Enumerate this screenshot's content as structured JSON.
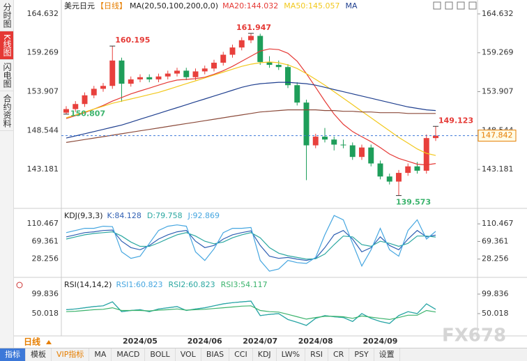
{
  "tabs_left": [
    "分时图",
    "K线图",
    "闪电图",
    "合约资料"
  ],
  "period_label": "日线",
  "watermark": "FX678",
  "toolbar": [
    "指标",
    "模板",
    "VIP指标",
    "MA",
    "MACD",
    "BOLL",
    "VOL",
    "BIAS",
    "CCI",
    "KDJ",
    "LW%",
    "RSI",
    "CR",
    "PSY",
    "设置"
  ],
  "chart_data": [
    {
      "type": "candlestick",
      "title": "美元日元",
      "period": "【日线】",
      "params": "MA(20,50,100,200,0,0)",
      "categories": [
        null,
        null,
        null,
        null,
        null,
        null,
        null,
        null,
        "2024/05",
        null,
        null,
        null,
        null,
        null,
        null,
        "2024/06",
        null,
        null,
        null,
        null,
        null,
        "2024/07",
        null,
        null,
        null,
        null,
        null,
        "2024/08",
        null,
        null,
        null,
        null,
        null,
        null,
        "2024/09",
        null,
        null,
        null,
        null,
        null,
        null
      ],
      "ohlc": [
        [
          151.0,
          151.9,
          150.807,
          151.5
        ],
        [
          151.5,
          152.6,
          151.1,
          152.2
        ],
        [
          152.2,
          153.8,
          151.8,
          153.4
        ],
        [
          153.4,
          154.7,
          153.0,
          154.3
        ],
        [
          154.3,
          155.1,
          153.9,
          154.7
        ],
        [
          154.7,
          160.195,
          154.3,
          158.2
        ],
        [
          158.2,
          158.6,
          152.5,
          155.0
        ],
        [
          155.0,
          156.0,
          154.6,
          155.6
        ],
        [
          155.6,
          156.3,
          155.2,
          155.9
        ],
        [
          155.9,
          156.3,
          155.2,
          155.6
        ],
        [
          155.6,
          156.4,
          155.2,
          156.0
        ],
        [
          156.0,
          156.8,
          155.6,
          156.4
        ],
        [
          156.4,
          157.2,
          156.0,
          156.8
        ],
        [
          156.8,
          157.2,
          155.5,
          155.9
        ],
        [
          155.9,
          157.1,
          155.5,
          156.7
        ],
        [
          156.7,
          157.5,
          156.3,
          157.1
        ],
        [
          157.1,
          158.3,
          156.7,
          157.9
        ],
        [
          157.9,
          159.4,
          157.5,
          159.0
        ],
        [
          159.0,
          160.4,
          158.6,
          160.0
        ],
        [
          160.0,
          161.4,
          159.6,
          161.0
        ],
        [
          161.0,
          161.947,
          160.6,
          161.6
        ],
        [
          161.6,
          161.9,
          157.6,
          158.0
        ],
        [
          158.0,
          158.8,
          157.2,
          157.6
        ],
        [
          157.6,
          158.2,
          156.9,
          157.3
        ],
        [
          157.3,
          157.7,
          154.4,
          154.8
        ],
        [
          154.8,
          155.2,
          152.0,
          152.4
        ],
        [
          152.4,
          152.8,
          141.7,
          146.5
        ],
        [
          146.5,
          148.1,
          146.1,
          147.7
        ],
        [
          147.7,
          148.9,
          146.9,
          147.3
        ],
        [
          147.3,
          147.7,
          145.8,
          146.6
        ],
        [
          146.6,
          147.3,
          146.1,
          146.5
        ],
        [
          146.5,
          146.9,
          144.5,
          144.9
        ],
        [
          144.9,
          146.6,
          144.5,
          146.2
        ],
        [
          146.2,
          146.6,
          143.6,
          144.0
        ],
        [
          144.0,
          144.4,
          141.8,
          142.2
        ],
        [
          142.2,
          142.6,
          141.1,
          141.5
        ],
        [
          141.5,
          143.1,
          139.573,
          142.7
        ],
        [
          142.7,
          144.0,
          142.3,
          143.6
        ],
        [
          143.6,
          144.2,
          142.6,
          143.0
        ],
        [
          143.0,
          148.0,
          142.6,
          147.5
        ],
        [
          147.5,
          149.123,
          147.1,
          147.842
        ]
      ],
      "up_color": "#e8403c",
      "down_color": "#1e9e5a",
      "series": [
        {
          "name": "MA20:144.032",
          "color": "#e53935",
          "values": [
            150.2,
            150.6,
            151.0,
            151.5,
            152.0,
            152.6,
            153.1,
            153.6,
            154.0,
            154.4,
            154.8,
            155.2,
            155.5,
            155.6,
            155.7,
            155.9,
            156.3,
            156.8,
            157.4,
            158.1,
            158.8,
            159.5,
            159.8,
            159.7,
            159.2,
            158.1,
            156.4,
            154.5,
            152.6,
            150.8,
            149.4,
            148.4,
            147.7,
            147.0,
            146.2,
            145.3,
            144.7,
            144.3,
            143.9,
            143.8,
            144.0
          ]
        },
        {
          "name": "MA50:145.057",
          "color": "#f2c81c",
          "values": [
            150.3,
            150.7,
            151.1,
            151.5,
            151.9,
            152.3,
            152.6,
            152.9,
            153.2,
            153.5,
            153.8,
            154.2,
            154.6,
            155.0,
            155.4,
            155.8,
            156.2,
            156.6,
            157.0,
            157.4,
            157.7,
            157.9,
            158.0,
            157.9,
            157.6,
            157.1,
            156.4,
            155.6,
            154.8,
            153.9,
            153.0,
            152.1,
            151.2,
            150.3,
            149.4,
            148.5,
            147.6,
            146.8,
            146.0,
            145.4,
            145.1
          ]
        },
        {
          "name": "MA",
          "color": "#1f3f8f",
          "values": [
            147.5,
            147.8,
            148.1,
            148.4,
            148.7,
            149.0,
            149.3,
            149.7,
            150.1,
            150.5,
            150.9,
            151.3,
            151.7,
            152.1,
            152.5,
            152.9,
            153.3,
            153.7,
            154.1,
            154.5,
            154.8,
            155.0,
            155.1,
            155.2,
            155.2,
            155.1,
            155.0,
            154.8,
            154.5,
            154.2,
            153.9,
            153.6,
            153.3,
            153.0,
            152.7,
            152.4,
            152.1,
            151.8,
            151.6,
            151.4,
            151.3
          ]
        },
        {
          "color": "#8b4a3a",
          "values": [
            146.9,
            147.1,
            147.3,
            147.5,
            147.7,
            147.9,
            148.1,
            148.3,
            148.5,
            148.7,
            148.9,
            149.1,
            149.3,
            149.5,
            149.7,
            149.9,
            150.1,
            150.3,
            150.5,
            150.7,
            150.9,
            151.1,
            151.2,
            151.3,
            151.4,
            151.4,
            151.4,
            151.4,
            151.3,
            151.3,
            151.2,
            151.2,
            151.1,
            151.1,
            151.0,
            151.0,
            151.0,
            150.9,
            150.9,
            150.9,
            150.9
          ]
        }
      ],
      "price_marks": [
        160.195,
        161.947,
        150.807,
        149.123,
        139.573
      ],
      "last_price": 147.842,
      "ylim": [
        137.9,
        165.3
      ],
      "yticks": [
        164.632,
        159.269,
        153.907,
        148.544,
        143.181
      ]
    },
    {
      "type": "line",
      "title": "KDJ(9,3,3)",
      "series": [
        {
          "name": "K:84.128",
          "color": "#2f5fb3",
          "values": [
            80,
            85,
            90,
            92,
            95,
            96,
            70,
            55,
            50,
            60,
            75,
            85,
            92,
            95,
            70,
            55,
            60,
            75,
            85,
            90,
            94,
            60,
            35,
            30,
            32,
            28,
            25,
            30,
            55,
            85,
            95,
            75,
            45,
            55,
            80,
            60,
            50,
            75,
            95,
            80,
            84.128
          ]
        },
        {
          "name": "D:79.758",
          "color": "#2aa7a0",
          "values": [
            75,
            80,
            85,
            88,
            90,
            92,
            82,
            68,
            58,
            58,
            66,
            76,
            85,
            90,
            82,
            70,
            64,
            68,
            78,
            85,
            90,
            78,
            55,
            42,
            36,
            32,
            28,
            29,
            40,
            62,
            82,
            80,
            62,
            58,
            70,
            65,
            58,
            65,
            82,
            82,
            79.758
          ]
        },
        {
          "name": "J:92.869",
          "color": "#45a6e0",
          "values": [
            90,
            95,
            100,
            100,
            105,
            104,
            45,
            30,
            35,
            65,
            95,
            105,
            108,
            105,
            45,
            25,
            52,
            90,
            100,
            100,
            102,
            25,
            0,
            5,
            25,
            20,
            18,
            32,
            85,
            130,
            120,
            65,
            12,
            50,
            100,
            50,
            35,
            95,
            120,
            75,
            92.869
          ]
        }
      ],
      "ylim": [
        -9.6,
        140.1
      ],
      "yticks": [
        110.467,
        69.361,
        28.256
      ]
    },
    {
      "type": "line",
      "title": "RSI(14,14,2)",
      "series": [
        {
          "name": "RSI1:60.823",
          "color": "#45a6e0",
          "values": [
            60,
            62,
            65,
            68,
            70,
            80,
            55,
            58,
            60,
            55,
            62,
            65,
            68,
            58,
            62,
            65,
            70,
            75,
            78,
            80,
            82,
            45,
            48,
            50,
            35,
            28,
            20,
            38,
            45,
            42,
            40,
            30,
            50,
            38,
            30,
            25,
            45,
            55,
            50,
            75,
            60.823
          ]
        },
        {
          "name": "RSI2:60.823",
          "color": "#2aa7a0",
          "values": [
            60,
            62,
            65,
            68,
            70,
            80,
            55,
            58,
            60,
            55,
            62,
            65,
            68,
            58,
            62,
            65,
            70,
            75,
            78,
            80,
            82,
            45,
            48,
            50,
            35,
            28,
            20,
            38,
            45,
            42,
            40,
            30,
            50,
            38,
            30,
            25,
            45,
            55,
            50,
            75,
            60.823
          ]
        },
        {
          "name": "RSI3:54.117",
          "color": "#3bb36c",
          "values": [
            55,
            56,
            58,
            60,
            61,
            65,
            58,
            58,
            58,
            57,
            59,
            60,
            62,
            59,
            60,
            61,
            63,
            65,
            67,
            69,
            70,
            58,
            55,
            54,
            48,
            42,
            36,
            40,
            43,
            43,
            42,
            38,
            44,
            41,
            38,
            35,
            40,
            46,
            46,
            58,
            54.117
          ]
        }
      ],
      "ylim": [
        -6.9,
        135.4
      ],
      "yticks": [
        99.836,
        50.018
      ]
    }
  ]
}
